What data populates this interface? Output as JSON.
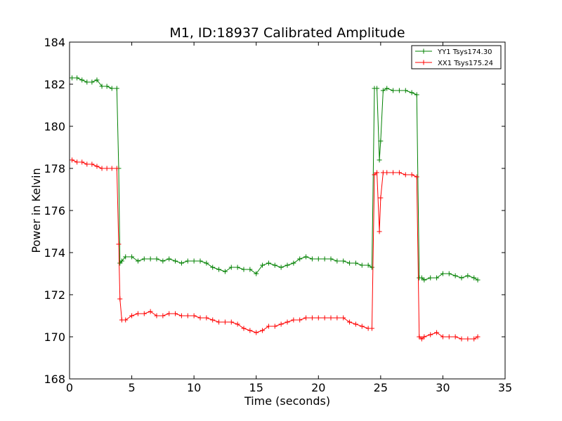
{
  "chart_data": {
    "type": "line",
    "title": "M1, ID:18937 Calibrated Amplitude",
    "xlabel": "Time (seconds)",
    "ylabel": "Power in Kelvin",
    "xlim": [
      0,
      35
    ],
    "ylim": [
      168,
      184
    ],
    "xticks": [
      0,
      5,
      10,
      15,
      20,
      25,
      30,
      35
    ],
    "yticks": [
      168,
      170,
      172,
      174,
      176,
      178,
      180,
      182,
      184
    ],
    "grid": false,
    "legend_position": "top-right",
    "marker": "+",
    "series": [
      {
        "name": "YY1 Tsys174.30",
        "color": "#008000",
        "x": [
          0.2,
          0.6,
          1.0,
          1.4,
          1.8,
          2.2,
          2.6,
          3.0,
          3.4,
          3.8,
          3.95,
          4.05,
          4.2,
          4.5,
          5.0,
          5.5,
          6.0,
          6.5,
          7.0,
          7.5,
          8.0,
          8.5,
          9.0,
          9.5,
          10.0,
          10.5,
          11.0,
          11.5,
          12.0,
          12.5,
          13.0,
          13.5,
          14.0,
          14.5,
          15.0,
          15.5,
          16.0,
          16.5,
          17.0,
          17.5,
          18.0,
          18.5,
          19.0,
          19.5,
          20.0,
          20.5,
          21.0,
          21.5,
          22.0,
          22.5,
          23.0,
          23.5,
          24.0,
          24.3,
          24.5,
          24.7,
          24.9,
          25.0,
          25.2,
          25.5,
          26.0,
          26.5,
          27.0,
          27.5,
          27.9,
          28.1,
          28.3,
          28.5,
          29.0,
          29.5,
          30.0,
          30.5,
          31.0,
          31.5,
          32.0,
          32.5,
          32.8
        ],
        "y": [
          182.3,
          182.3,
          182.2,
          182.1,
          182.1,
          182.2,
          181.9,
          181.9,
          181.8,
          181.8,
          178.0,
          173.5,
          173.6,
          173.8,
          173.8,
          173.6,
          173.7,
          173.7,
          173.7,
          173.6,
          173.7,
          173.6,
          173.5,
          173.6,
          173.6,
          173.6,
          173.5,
          173.3,
          173.2,
          173.1,
          173.3,
          173.3,
          173.2,
          173.2,
          173.0,
          173.4,
          173.5,
          173.4,
          173.3,
          173.4,
          173.5,
          173.7,
          173.8,
          173.7,
          173.7,
          173.7,
          173.7,
          173.6,
          173.6,
          173.5,
          173.5,
          173.4,
          173.4,
          173.3,
          181.8,
          181.8,
          178.4,
          179.3,
          181.7,
          181.8,
          181.7,
          181.7,
          181.7,
          181.6,
          181.5,
          172.8,
          172.8,
          172.7,
          172.8,
          172.8,
          173.0,
          173.0,
          172.9,
          172.8,
          172.9,
          172.8,
          172.7
        ]
      },
      {
        "name": "XX1 Tsys175.24",
        "color": "#ff0000",
        "x": [
          0.2,
          0.6,
          1.0,
          1.4,
          1.8,
          2.2,
          2.6,
          3.0,
          3.4,
          3.8,
          3.95,
          4.05,
          4.2,
          4.5,
          5.0,
          5.5,
          6.0,
          6.5,
          7.0,
          7.5,
          8.0,
          8.5,
          9.0,
          9.5,
          10.0,
          10.5,
          11.0,
          11.5,
          12.0,
          12.5,
          13.0,
          13.5,
          14.0,
          14.5,
          15.0,
          15.5,
          16.0,
          16.5,
          17.0,
          17.5,
          18.0,
          18.5,
          19.0,
          19.5,
          20.0,
          20.5,
          21.0,
          21.5,
          22.0,
          22.5,
          23.0,
          23.5,
          24.0,
          24.3,
          24.5,
          24.7,
          24.9,
          25.0,
          25.2,
          25.5,
          26.0,
          26.5,
          27.0,
          27.5,
          27.9,
          28.1,
          28.3,
          28.5,
          29.0,
          29.5,
          30.0,
          30.5,
          31.0,
          31.5,
          32.0,
          32.5,
          32.8
        ],
        "y": [
          178.4,
          178.3,
          178.3,
          178.2,
          178.2,
          178.1,
          178.0,
          178.0,
          178.0,
          178.0,
          174.4,
          171.8,
          170.8,
          170.8,
          171.0,
          171.1,
          171.1,
          171.2,
          171.0,
          171.0,
          171.1,
          171.1,
          171.0,
          171.0,
          171.0,
          170.9,
          170.9,
          170.8,
          170.7,
          170.7,
          170.7,
          170.6,
          170.4,
          170.3,
          170.2,
          170.3,
          170.5,
          170.5,
          170.6,
          170.7,
          170.8,
          170.8,
          170.9,
          170.9,
          170.9,
          170.9,
          170.9,
          170.9,
          170.9,
          170.7,
          170.6,
          170.5,
          170.4,
          170.4,
          177.7,
          177.8,
          175.0,
          176.6,
          177.8,
          177.8,
          177.8,
          177.8,
          177.7,
          177.7,
          177.6,
          170.0,
          169.9,
          170.0,
          170.1,
          170.2,
          170.0,
          170.0,
          170.0,
          169.9,
          169.9,
          169.9,
          170.0
        ]
      }
    ]
  }
}
